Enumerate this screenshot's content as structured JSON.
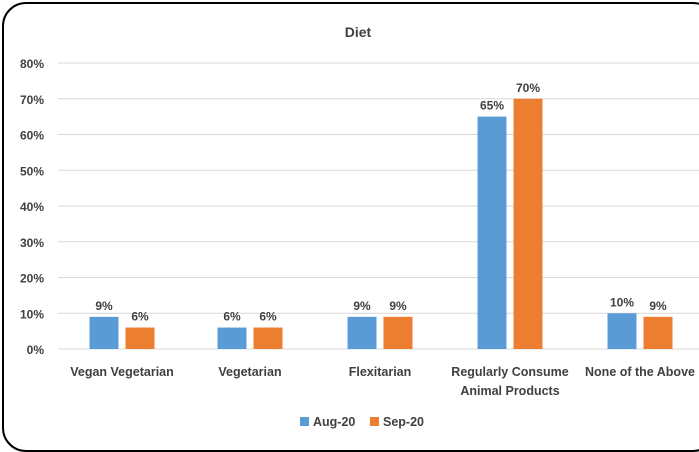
{
  "chart_data": {
    "type": "bar",
    "title": "Diet",
    "categories": [
      "Vegan Vegetarian",
      "Vegetarian",
      "Flexitarian",
      "Regularly Consume\nAnimal Products",
      "None of the Above"
    ],
    "series": [
      {
        "name": "Aug-20",
        "values": [
          9,
          6,
          9,
          65,
          10
        ],
        "labels": [
          "9%",
          "6%",
          "9%",
          "65%",
          "10%"
        ],
        "color": "#5B9BD5"
      },
      {
        "name": "Sep-20",
        "values": [
          6,
          6,
          9,
          70,
          9
        ],
        "labels": [
          "6%",
          "6%",
          "9%",
          "70%",
          "9%"
        ],
        "color": "#ED7D31"
      }
    ],
    "ylim": [
      0,
      80
    ],
    "yticks": [
      "0%",
      "10%",
      "20%",
      "30%",
      "40%",
      "50%",
      "60%",
      "70%",
      "80%"
    ],
    "grid": true,
    "legend_position": "bottom"
  }
}
